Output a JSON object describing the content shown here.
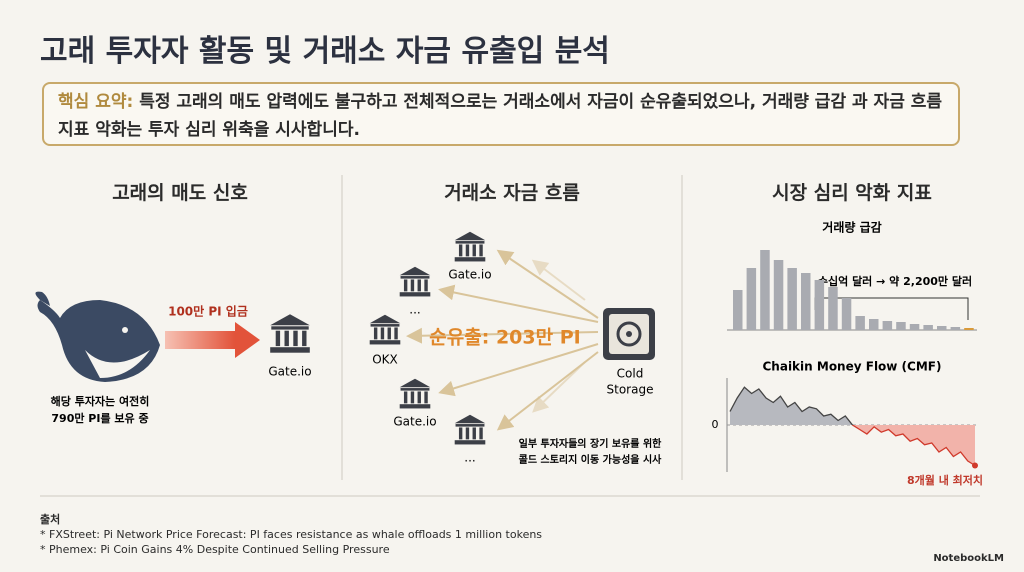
{
  "title": "고래 투자자 활동 및 거래소 자금 유출입 분석",
  "summary": {
    "label": "핵심 요약:",
    "text": "특정 고래의 매도 압력에도 불구하고 전체적으로는 거래소에서 자금이 순유출되었으나, 거래량 급감 과 자금 흐름 지표 악화는 투자 심리 위축을 시사합니다."
  },
  "whale": {
    "heading": "고래의 매도 신호",
    "arrow_label": "100만 PI 입금",
    "exchange": "Gate.io",
    "note": [
      "해당 투자자는 여전히",
      "790만 PI를 보유 중"
    ]
  },
  "flows": {
    "heading": "거래소 자금 흐름",
    "net_outflow": "순유출: 203만 PI",
    "exchanges": [
      "Gate.io",
      "...",
      "OKX",
      "Gate.io",
      "..."
    ],
    "source": [
      "Cold",
      "Storage"
    ],
    "note": [
      "일부 투자자들의 장기 보유를 위한",
      "콜드 스토리지 이동 가능성을 시사"
    ]
  },
  "sentiment": {
    "heading": "시장 심리 악화 지표",
    "volume": {
      "title": "거래량 급감",
      "annotation": "수십억 달러 → 약 2,200만 달러",
      "ylim": [
        0,
        85
      ],
      "values": [
        40,
        62,
        80,
        70,
        62,
        57,
        50,
        43,
        32,
        14,
        11,
        9,
        8,
        6,
        5,
        4,
        3,
        2
      ]
    },
    "cmf": {
      "title": "Chaikin Money Flow (CMF)",
      "zero_tick": 0,
      "annotation": "8개월 내 최저치",
      "ylim": [
        -0.5,
        0.5
      ],
      "values": [
        0.15,
        0.3,
        0.42,
        0.35,
        0.4,
        0.3,
        0.25,
        0.32,
        0.2,
        0.25,
        0.15,
        0.2,
        0.18,
        0.1,
        0.12,
        0.05,
        0.1,
        0.0,
        -0.05,
        -0.1,
        -0.02,
        -0.08,
        -0.05,
        -0.12,
        -0.1,
        -0.18,
        -0.15,
        -0.22,
        -0.2,
        -0.3,
        -0.25,
        -0.35,
        -0.3,
        -0.4,
        -0.45
      ]
    }
  },
  "sources": {
    "heading": "출처",
    "items": [
      "* FXStreet: Pi Network Price Forecast: PI faces resistance as whale offloads 1 million tokens",
      "* Phemex: Pi Coin Gains 4% Despite Continued Selling Pressure"
    ]
  },
  "brand": "NotebookLM"
}
